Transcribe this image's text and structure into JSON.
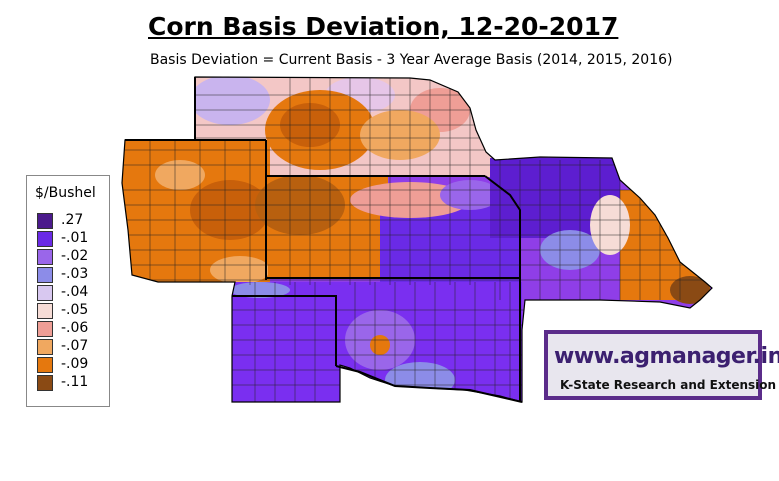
{
  "title": "Corn Basis Deviation, 12-20-2017",
  "subtitle": "Basis Deviation = Current Basis - 3 Year Average Basis (2014, 2015, 2016)",
  "legend": {
    "title": "$/Bushel",
    "items": [
      {
        "label": ".27",
        "color": "#4b1a8c"
      },
      {
        "label": "-.01",
        "color": "#6a2ae6"
      },
      {
        "label": "-.02",
        "color": "#9a66ea"
      },
      {
        "label": "-.03",
        "color": "#8c8ce8"
      },
      {
        "label": "-.04",
        "color": "#d8c8f0"
      },
      {
        "label": "-.05",
        "color": "#f6dcd6"
      },
      {
        "label": "-.06",
        "color": "#ef9e96"
      },
      {
        "label": "-.07",
        "color": "#f0a860"
      },
      {
        "label": "-.09",
        "color": "#e5780e"
      },
      {
        "label": "-.11",
        "color": "#8a4a14"
      }
    ]
  },
  "logo": {
    "url_text": "www.agmanager.info",
    "org_text": "K-State Research and Extension"
  }
}
